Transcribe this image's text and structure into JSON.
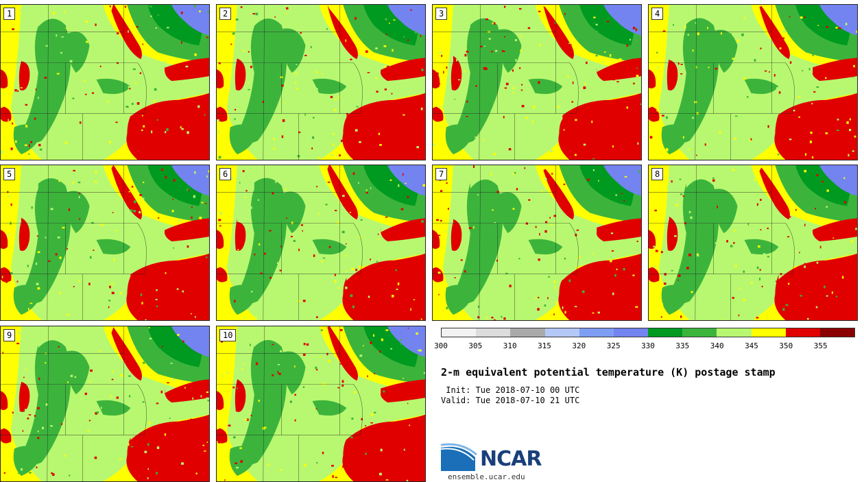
{
  "panels": [
    {
      "label": "1"
    },
    {
      "label": "2"
    },
    {
      "label": "3"
    },
    {
      "label": "4"
    },
    {
      "label": "5"
    },
    {
      "label": "6"
    },
    {
      "label": "7"
    },
    {
      "label": "8"
    },
    {
      "label": "9"
    },
    {
      "label": "10"
    }
  ],
  "colorbar": {
    "colors": [
      "#f2f2f2",
      "#dcdcdc",
      "#aaaaaa",
      "#b4c8f8",
      "#7e9ef4",
      "#7384f0",
      "#009a20",
      "#3cb43c",
      "#b8f870",
      "#ffff00",
      "#e00000",
      "#8b0000"
    ],
    "ticks": [
      "300",
      "305",
      "310",
      "315",
      "320",
      "325",
      "330",
      "335",
      "340",
      "345",
      "350",
      "355"
    ]
  },
  "title": "2-m equivalent potential temperature (K) postage stamp",
  "init_label": " Init: Tue 2018-07-10 00 UTC",
  "valid_label": "Valid: Tue 2018-07-10 21 UTC",
  "logo": {
    "name": "NCAR",
    "url": "ensemble.ucar.edu"
  },
  "map_colors": {
    "yellow": "#ffff00",
    "light_green": "#b8f870",
    "mid_green": "#3cb43c",
    "dark_green": "#009a20",
    "red": "#e00000",
    "blue": "#7384f0"
  }
}
